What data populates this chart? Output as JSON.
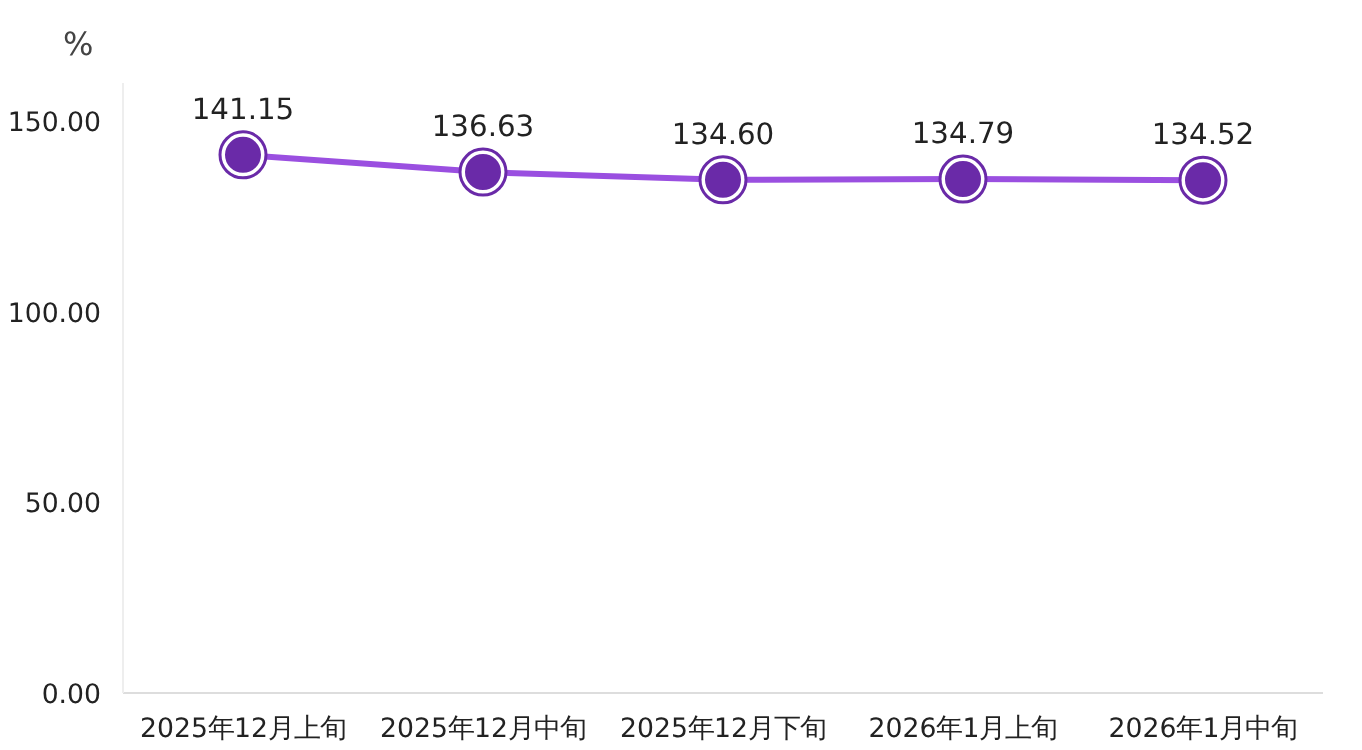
{
  "chart_data": {
    "type": "line",
    "ylabel": "%",
    "categories": [
      "2025年12月上旬",
      "2025年12月中旬",
      "2025年12月下旬",
      "2026年1月上旬",
      "2026年1月中旬"
    ],
    "series": [
      {
        "color": "#9a4fe0",
        "values": [
          141.15,
          136.63,
          134.6,
          134.79,
          134.52
        ],
        "value_labels": [
          "141.15",
          "136.63",
          "134.60",
          "134.79",
          "134.52"
        ]
      }
    ],
    "ylim": [
      0,
      160
    ],
    "yticks": [
      {
        "value": 0,
        "label": "0.00"
      },
      {
        "value": 50,
        "label": "50.00"
      },
      {
        "value": 100,
        "label": "100.00"
      },
      {
        "value": 150,
        "label": "150.00"
      }
    ],
    "marker": "circle",
    "grid": false
  }
}
